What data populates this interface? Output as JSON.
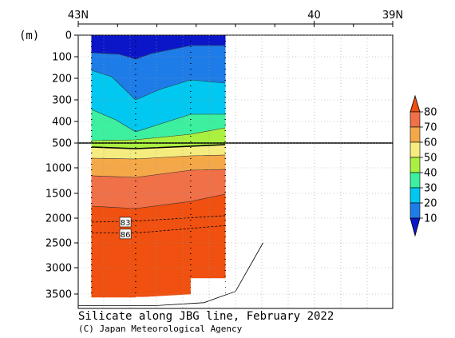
{
  "chart_data": {
    "type": "contour",
    "title": "Silicate along JBG line, February 2022",
    "credit": "(C) Japan Meteorological Agency",
    "ylabel": "(m)",
    "x_ticks": [
      "43N",
      "40",
      "39N"
    ],
    "x_tick_lat": [
      43,
      40,
      39
    ],
    "x_range_lat": [
      43,
      39
    ],
    "upper_y_ticks": [
      "0",
      "100",
      "200",
      "300",
      "400",
      "500"
    ],
    "upper_y_values": [
      0,
      100,
      200,
      300,
      400,
      500
    ],
    "lower_y_ticks": [
      "1000",
      "1500",
      "2000",
      "2500",
      "3000",
      "3500"
    ],
    "lower_y_values": [
      1000,
      1500,
      2000,
      2500,
      3000,
      3500
    ],
    "ylim_upper": [
      0,
      500
    ],
    "ylim_lower": [
      500,
      3750
    ],
    "colorbar": {
      "labels": [
        "80",
        "70",
        "60",
        "50",
        "40",
        "30",
        "20",
        "10"
      ],
      "levels": [
        80,
        70,
        60,
        50,
        40,
        30,
        20,
        10
      ],
      "colors": [
        "#0b16c8",
        "#1e7ce8",
        "#00c8f0",
        "#3cf0a0",
        "#aaf040",
        "#f5ec80",
        "#f5a848",
        "#f07048",
        "#f05010"
      ]
    },
    "contour_labels": [
      {
        "text": "83",
        "value": 83,
        "lat": 42.4,
        "depth": 2080
      },
      {
        "text": "86",
        "value": 86,
        "lat": 42.4,
        "depth": 2320
      }
    ],
    "stations_lat": [
      42.83,
      42.27,
      41.57,
      41.13
    ],
    "bottom_profile": [
      [
        43.0,
        3700
      ],
      [
        42.0,
        3700
      ],
      [
        41.4,
        3650
      ],
      [
        41.2,
        3550
      ],
      [
        41.0,
        3450
      ],
      [
        40.65,
        2500
      ]
    ]
  }
}
